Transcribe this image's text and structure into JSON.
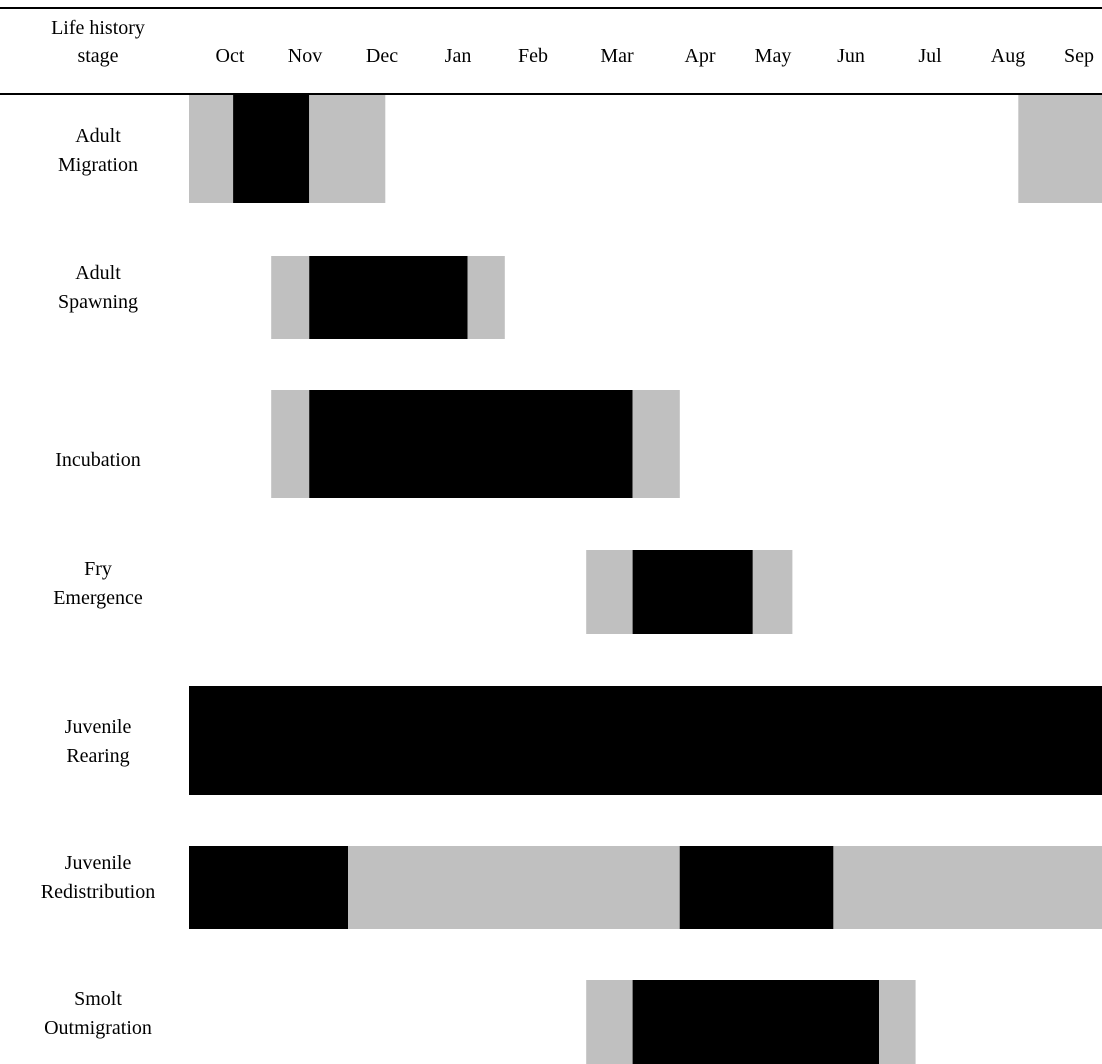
{
  "chart_data": {
    "type": "gantt",
    "header": {
      "stage_label_line1": "Life history",
      "stage_label_line2": "stage"
    },
    "categories": [
      "Oct",
      "Nov",
      "Dec",
      "Jan",
      "Feb",
      "Mar",
      "Apr",
      "May",
      "Jun",
      "Jul",
      "Aug",
      "Sep"
    ],
    "month_starts": [
      0,
      0.58,
      1.58,
      2.48,
      3.43,
      4.4,
      5.4,
      6.37,
      7.3,
      8.3,
      9.3,
      10.4,
      12.0
    ],
    "colors": {
      "peak": "#000000",
      "present": "#c0c0c0",
      "rule": "#000000"
    },
    "stages": [
      {
        "label_lines": [
          "Adult",
          "Migration"
        ],
        "segments": [
          {
            "start": 0,
            "end": 0.58,
            "level": "present"
          },
          {
            "start": 0.58,
            "end": 1.58,
            "level": "peak"
          },
          {
            "start": 1.58,
            "end": 2.58,
            "level": "present"
          },
          {
            "start": 10.9,
            "end": 12.0,
            "level": "present"
          }
        ]
      },
      {
        "label_lines": [
          "Adult",
          "Spawning"
        ],
        "segments": [
          {
            "start": 1.08,
            "end": 1.58,
            "level": "present"
          },
          {
            "start": 1.58,
            "end": 3.66,
            "level": "peak"
          },
          {
            "start": 3.66,
            "end": 4.15,
            "level": "present"
          }
        ]
      },
      {
        "label_lines": [
          "",
          "Incubation"
        ],
        "segments": [
          {
            "start": 1.08,
            "end": 1.58,
            "level": "present"
          },
          {
            "start": 1.58,
            "end": 5.83,
            "level": "peak"
          },
          {
            "start": 5.83,
            "end": 6.45,
            "level": "present"
          }
        ]
      },
      {
        "label_lines": [
          "Fry",
          "Emergence"
        ],
        "segments": [
          {
            "start": 5.22,
            "end": 5.83,
            "level": "present"
          },
          {
            "start": 5.83,
            "end": 7.41,
            "level": "peak"
          },
          {
            "start": 7.41,
            "end": 7.93,
            "level": "present"
          }
        ]
      },
      {
        "label_lines": [
          "Juvenile",
          "Rearing"
        ],
        "segments": [
          {
            "start": 0,
            "end": 12.0,
            "level": "peak"
          }
        ]
      },
      {
        "label_lines": [
          "Juvenile",
          "Redistribution"
        ],
        "segments": [
          {
            "start": 0,
            "end": 2.09,
            "level": "peak"
          },
          {
            "start": 2.09,
            "end": 6.45,
            "level": "present"
          },
          {
            "start": 6.45,
            "end": 8.47,
            "level": "peak"
          },
          {
            "start": 8.47,
            "end": 12.0,
            "level": "present"
          }
        ]
      },
      {
        "label_lines": [
          "Smolt",
          "Outmigration"
        ],
        "segments": [
          {
            "start": 5.22,
            "end": 5.83,
            "level": "present"
          },
          {
            "start": 5.83,
            "end": 9.07,
            "level": "peak"
          },
          {
            "start": 9.07,
            "end": 9.55,
            "level": "present"
          }
        ]
      }
    ]
  }
}
